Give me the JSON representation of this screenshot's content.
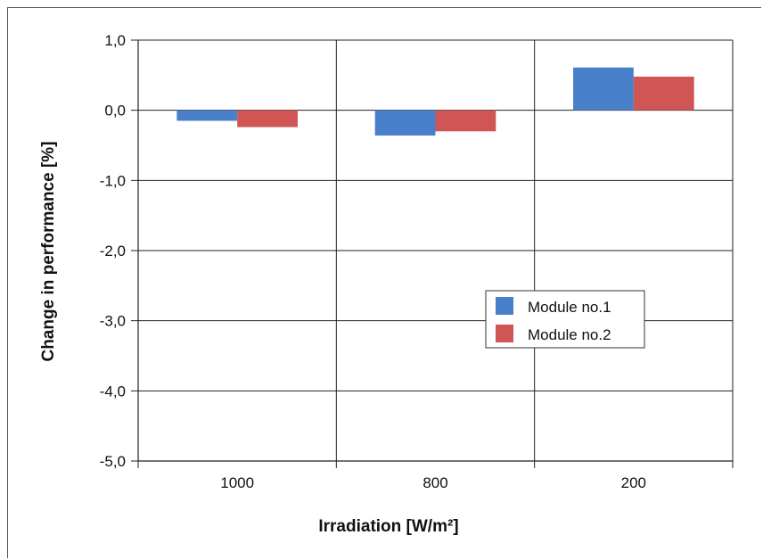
{
  "chart_data": {
    "type": "bar",
    "categories": [
      "1000",
      "800",
      "200"
    ],
    "series": [
      {
        "name": "Module no.1",
        "values": [
          -0.15,
          -0.36,
          0.61
        ],
        "color": "#4a7fc9"
      },
      {
        "name": "Module no.2",
        "values": [
          -0.24,
          -0.3,
          0.48
        ],
        "color": "#d05656"
      }
    ],
    "xlabel": "Irradiation [W/m²]",
    "ylabel": "Change in performance [%]",
    "ylim": [
      -5.0,
      1.0
    ],
    "yticks": [
      1.0,
      0.0,
      -1.0,
      -2.0,
      -3.0,
      -4.0,
      -5.0
    ],
    "ytick_labels": [
      "1,0",
      "0,0",
      "-1,0",
      "-2,0",
      "-3,0",
      "-4,0",
      "-5,0"
    ],
    "grid": true,
    "legend_position": "center-right"
  }
}
